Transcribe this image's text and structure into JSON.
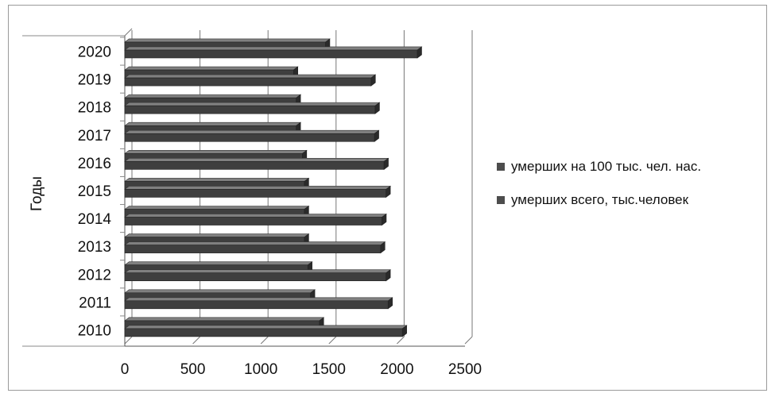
{
  "chart_data": {
    "type": "bar",
    "orientation": "horizontal",
    "style": "3d-clustered",
    "ylabel": "Годы",
    "categories": [
      "2010",
      "2011",
      "2012",
      "2013",
      "2014",
      "2015",
      "2016",
      "2017",
      "2018",
      "2019",
      "2020"
    ],
    "xlim": [
      0,
      2500
    ],
    "xticks": [
      "0",
      "500",
      "1000",
      "1500",
      "2000",
      "2500"
    ],
    "series": [
      {
        "name": "умерших на 100 тыс. чел. нас.",
        "values": [
          1430,
          1365,
          1345,
          1320,
          1320,
          1320,
          1305,
          1260,
          1260,
          1240,
          1475
        ]
      },
      {
        "name": "умерших всего, тыс.человек",
        "values": [
          2040,
          1935,
          1920,
          1880,
          1890,
          1920,
          1905,
          1835,
          1840,
          1810,
          2150
        ]
      }
    ],
    "legend_position": "right",
    "colors": {
      "bar": "#3f3f3f",
      "bar_top": "#808080",
      "axis": "#555555"
    }
  }
}
